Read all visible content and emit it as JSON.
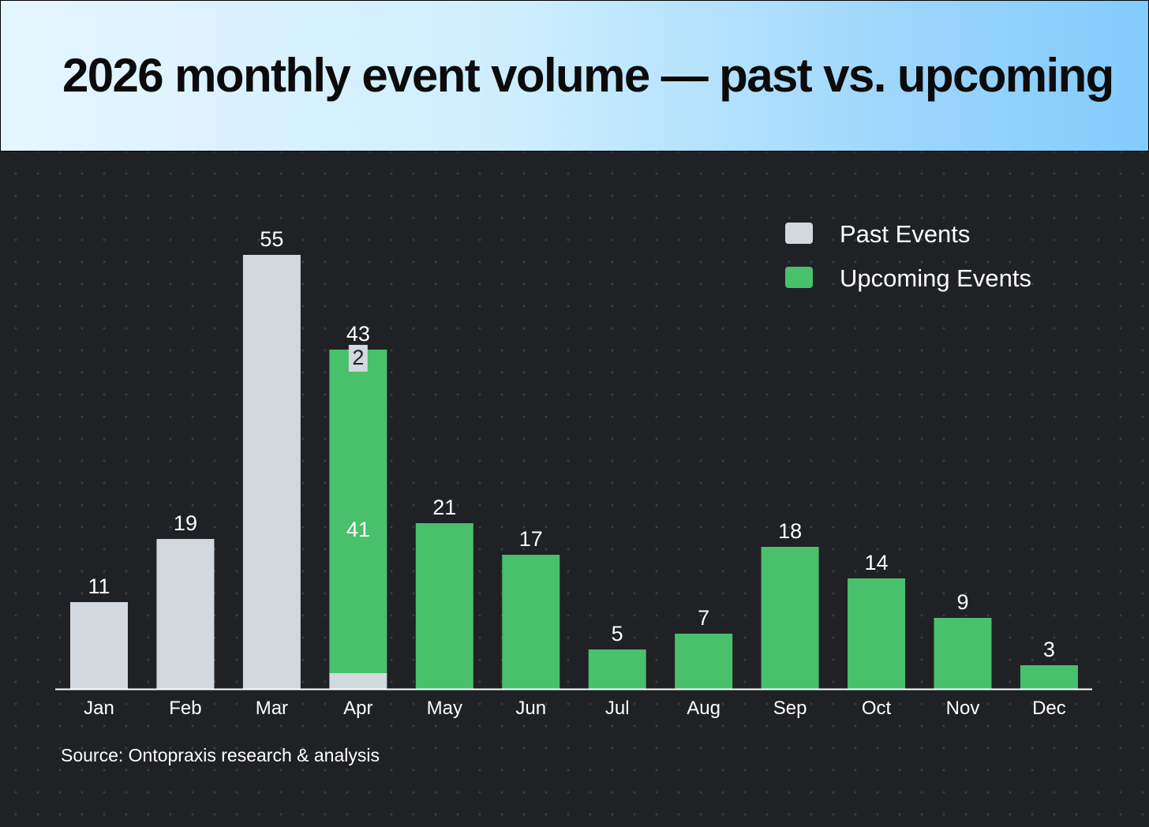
{
  "chart_data": {
    "type": "bar",
    "stacked": true,
    "title": "2026 monthly event volume — past vs. upcoming",
    "categories": [
      "Jan",
      "Feb",
      "Mar",
      "Apr",
      "May",
      "Jun",
      "Jul",
      "Aug",
      "Sep",
      "Oct",
      "Nov",
      "Dec"
    ],
    "series": [
      {
        "name": "Past Events",
        "color": "#d2d8de",
        "values": [
          11,
          19,
          55,
          2,
          0,
          0,
          0,
          0,
          0,
          0,
          0,
          0
        ]
      },
      {
        "name": "Upcoming Events",
        "color": "#49c06c",
        "values": [
          0,
          0,
          0,
          41,
          21,
          17,
          5,
          7,
          18,
          14,
          9,
          3
        ]
      }
    ],
    "totals": [
      11,
      19,
      55,
      43,
      21,
      17,
      5,
      7,
      18,
      14,
      9,
      3
    ],
    "ylim": [
      0,
      60
    ],
    "xlabel": "",
    "ylabel": "",
    "legend_position": "top-right",
    "grid": false
  },
  "source": "Source: Ontopraxis research & analysis",
  "colors": {
    "text": "#ffffff",
    "axis": "#ffffff",
    "segment_label_bg": "#d2d8de",
    "segment_label_text": "#1f2125"
  }
}
